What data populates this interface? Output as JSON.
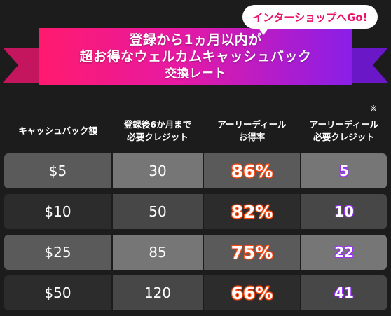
{
  "banner": {
    "bubble_text": "インターショップへGo!",
    "line1": "登録から1ヵ月以内が",
    "line2": "超お得なウェルカムキャッシュバック",
    "line3": "交換レート",
    "colors": {
      "pink": "#ff1a6e",
      "purple": "#8a1ee8"
    }
  },
  "table": {
    "note_mark": "※",
    "headers": [
      {
        "line1": "キャッシュバック額",
        "line2": ""
      },
      {
        "line1": "登録後6か月まで",
        "line2": "必要クレジット"
      },
      {
        "line1": "アーリーディール",
        "line2": "お得率"
      },
      {
        "line1": "アーリーディール",
        "line2": "必要クレジット"
      }
    ],
    "rows": [
      {
        "cashback": "$5",
        "credits": "30",
        "rate": "86%",
        "early_credits": "5"
      },
      {
        "cashback": "$10",
        "credits": "50",
        "rate": "82%",
        "early_credits": "10"
      },
      {
        "cashback": "$25",
        "credits": "85",
        "rate": "75%",
        "early_credits": "22"
      },
      {
        "cashback": "$50",
        "credits": "120",
        "rate": "66%",
        "early_credits": "41"
      }
    ]
  }
}
